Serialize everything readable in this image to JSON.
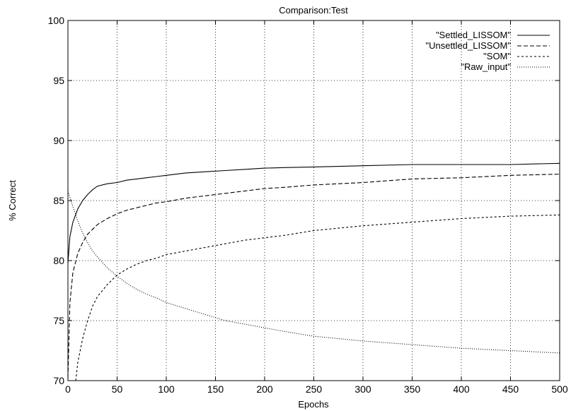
{
  "chart_data": {
    "type": "line",
    "title": "Comparison:Test",
    "xlabel": "Epochs",
    "ylabel": "% Correct",
    "xlim": [
      0,
      500
    ],
    "ylim": [
      70,
      100
    ],
    "xticks": [
      0,
      50,
      100,
      150,
      200,
      250,
      300,
      350,
      400,
      450,
      500
    ],
    "yticks": [
      70,
      75,
      80,
      85,
      90,
      95,
      100
    ],
    "grid": true,
    "legend_position": "top-right",
    "series": [
      {
        "name": "\"Settled_LISSOM\"",
        "dash": "solid",
        "x": [
          0,
          2,
          5,
          10,
          15,
          20,
          25,
          30,
          40,
          50,
          60,
          70,
          80,
          90,
          100,
          120,
          140,
          160,
          180,
          200,
          220,
          250,
          300,
          350,
          400,
          450,
          500
        ],
        "y": [
          79.8,
          82.0,
          83.2,
          84.3,
          85.0,
          85.5,
          85.9,
          86.2,
          86.4,
          86.5,
          86.7,
          86.8,
          86.9,
          87.0,
          87.1,
          87.3,
          87.4,
          87.5,
          87.6,
          87.7,
          87.75,
          87.8,
          87.9,
          88.0,
          88.0,
          88.0,
          88.1
        ]
      },
      {
        "name": "\"Unsettled_LISSOM\"",
        "dash": "long-dash",
        "x": [
          0,
          2,
          5,
          10,
          15,
          20,
          25,
          30,
          40,
          50,
          60,
          70,
          80,
          90,
          100,
          120,
          140,
          160,
          180,
          200,
          220,
          250,
          300,
          350,
          400,
          450,
          500
        ],
        "y": [
          70.2,
          76.5,
          79.0,
          80.6,
          81.5,
          82.2,
          82.6,
          83.0,
          83.5,
          83.9,
          84.2,
          84.4,
          84.6,
          84.8,
          84.9,
          85.2,
          85.4,
          85.6,
          85.8,
          86.0,
          86.1,
          86.3,
          86.5,
          86.8,
          86.9,
          87.1,
          87.2
        ]
      },
      {
        "name": "\"SOM\"",
        "dash": "short-dash",
        "x": [
          8,
          10,
          15,
          20,
          25,
          30,
          40,
          50,
          60,
          70,
          80,
          90,
          100,
          120,
          140,
          160,
          180,
          200,
          220,
          250,
          300,
          350,
          400,
          450,
          500
        ],
        "y": [
          70.0,
          71.5,
          73.5,
          75.0,
          76.2,
          77.0,
          78.0,
          78.8,
          79.3,
          79.7,
          80.0,
          80.2,
          80.5,
          80.8,
          81.1,
          81.4,
          81.7,
          81.9,
          82.1,
          82.5,
          82.9,
          83.2,
          83.5,
          83.7,
          83.8
        ]
      },
      {
        "name": "\"Raw_input\"",
        "dash": "dotted",
        "x": [
          0,
          5,
          10,
          15,
          20,
          25,
          30,
          40,
          50,
          60,
          70,
          80,
          90,
          100,
          120,
          140,
          160,
          180,
          200,
          220,
          250,
          300,
          350,
          400,
          450,
          500
        ],
        "y": [
          85.8,
          84.5,
          83.3,
          82.3,
          81.5,
          80.8,
          80.3,
          79.4,
          78.7,
          78.1,
          77.6,
          77.2,
          76.9,
          76.5,
          76.0,
          75.5,
          75.0,
          74.7,
          74.4,
          74.1,
          73.7,
          73.3,
          73.0,
          72.7,
          72.5,
          72.3
        ]
      }
    ]
  }
}
